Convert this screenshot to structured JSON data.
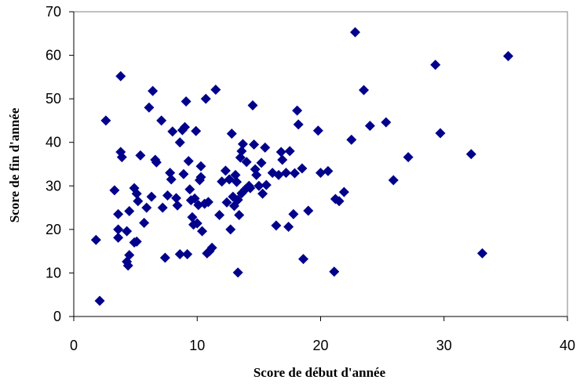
{
  "chart_data": {
    "type": "scatter",
    "title": "",
    "xlabel": "Score de début d'année",
    "ylabel": "Score de fin d'année",
    "xlim": [
      0,
      40
    ],
    "ylim": [
      0,
      70
    ],
    "x_ticks": [
      0,
      10,
      20,
      30,
      40
    ],
    "y_ticks": [
      0,
      10,
      20,
      30,
      40,
      50,
      60,
      70
    ],
    "grid": false,
    "legend": "none",
    "marker": "diamond",
    "colors": {
      "marker": "#00008B",
      "frame": "#808080",
      "axis": "#000000"
    },
    "series": [
      {
        "points": [
          [
            1.8,
            17.6
          ],
          [
            2.1,
            3.6
          ],
          [
            2.6,
            45.0
          ],
          [
            3.3,
            29.0
          ],
          [
            3.6,
            23.5
          ],
          [
            3.6,
            20.0
          ],
          [
            3.6,
            18.1
          ],
          [
            3.8,
            55.2
          ],
          [
            3.8,
            37.8
          ],
          [
            3.9,
            36.6
          ],
          [
            4.3,
            19.6
          ],
          [
            4.3,
            12.6
          ],
          [
            4.4,
            11.7
          ],
          [
            4.5,
            24.2
          ],
          [
            4.5,
            14.1
          ],
          [
            4.9,
            29.5
          ],
          [
            4.9,
            17.0
          ],
          [
            5.1,
            28.2
          ],
          [
            5.1,
            17.2
          ],
          [
            5.2,
            26.5
          ],
          [
            5.4,
            37.0
          ],
          [
            5.7,
            21.5
          ],
          [
            5.9,
            25.0
          ],
          [
            6.1,
            48.0
          ],
          [
            6.3,
            27.5
          ],
          [
            6.4,
            51.8
          ],
          [
            6.6,
            36.0
          ],
          [
            6.7,
            35.4
          ],
          [
            7.1,
            45.0
          ],
          [
            7.2,
            25.0
          ],
          [
            7.4,
            13.5
          ],
          [
            7.6,
            27.8
          ],
          [
            7.8,
            33.0
          ],
          [
            7.9,
            31.5
          ],
          [
            8.0,
            42.5
          ],
          [
            8.3,
            27.2
          ],
          [
            8.4,
            25.5
          ],
          [
            8.6,
            40.0
          ],
          [
            8.6,
            14.3
          ],
          [
            8.8,
            42.8
          ],
          [
            8.9,
            32.7
          ],
          [
            9.0,
            43.5
          ],
          [
            9.1,
            49.4
          ],
          [
            9.2,
            14.3
          ],
          [
            9.3,
            35.7
          ],
          [
            9.4,
            29.2
          ],
          [
            9.5,
            26.7
          ],
          [
            9.6,
            22.8
          ],
          [
            9.7,
            21.1
          ],
          [
            9.8,
            27.1
          ],
          [
            9.9,
            42.6
          ],
          [
            10.0,
            21.4
          ],
          [
            10.1,
            25.6
          ],
          [
            10.2,
            31.3
          ],
          [
            10.3,
            34.5
          ],
          [
            10.3,
            32.0
          ],
          [
            10.4,
            19.6
          ],
          [
            10.6,
            25.9
          ],
          [
            10.7,
            50.0
          ],
          [
            10.8,
            14.5
          ],
          [
            10.9,
            26.3
          ],
          [
            11.0,
            15.0
          ],
          [
            11.2,
            15.8
          ],
          [
            11.5,
            52.1
          ],
          [
            11.8,
            23.3
          ],
          [
            12.0,
            31.0
          ],
          [
            12.3,
            33.5
          ],
          [
            12.4,
            26.2
          ],
          [
            12.6,
            31.5
          ],
          [
            12.7,
            20.0
          ],
          [
            12.8,
            42.0
          ],
          [
            12.9,
            27.5
          ],
          [
            13.0,
            25.4
          ],
          [
            13.1,
            32.5
          ],
          [
            13.2,
            30.9
          ],
          [
            13.3,
            10.1
          ],
          [
            13.3,
            26.8
          ],
          [
            13.4,
            23.3
          ],
          [
            13.5,
            36.5
          ],
          [
            13.6,
            38.0
          ],
          [
            13.6,
            28.3
          ],
          [
            13.7,
            39.6
          ],
          [
            13.9,
            29.2
          ],
          [
            14.0,
            35.5
          ],
          [
            14.2,
            30.0
          ],
          [
            14.3,
            29.5
          ],
          [
            14.5,
            48.5
          ],
          [
            14.6,
            39.5
          ],
          [
            14.7,
            33.8
          ],
          [
            14.8,
            32.5
          ],
          [
            15.0,
            30.0
          ],
          [
            15.2,
            35.3
          ],
          [
            15.3,
            28.2
          ],
          [
            15.5,
            38.8
          ],
          [
            15.6,
            30.2
          ],
          [
            16.1,
            33.0
          ],
          [
            16.4,
            20.9
          ],
          [
            16.6,
            32.5
          ],
          [
            16.8,
            37.8
          ],
          [
            16.9,
            36.0
          ],
          [
            17.2,
            33.0
          ],
          [
            17.4,
            20.6
          ],
          [
            17.5,
            38.0
          ],
          [
            17.8,
            23.5
          ],
          [
            17.9,
            32.9
          ],
          [
            18.1,
            47.3
          ],
          [
            18.2,
            44.1
          ],
          [
            18.5,
            34.0
          ],
          [
            18.6,
            13.2
          ],
          [
            19.0,
            24.3
          ],
          [
            19.8,
            42.7
          ],
          [
            20.0,
            33.0
          ],
          [
            20.6,
            33.4
          ],
          [
            21.1,
            10.3
          ],
          [
            21.2,
            27.0
          ],
          [
            21.5,
            26.5
          ],
          [
            21.9,
            28.6
          ],
          [
            22.5,
            40.6
          ],
          [
            22.8,
            65.3
          ],
          [
            23.5,
            52.0
          ],
          [
            24.0,
            43.8
          ],
          [
            25.3,
            44.6
          ],
          [
            25.9,
            31.3
          ],
          [
            27.1,
            36.6
          ],
          [
            29.3,
            57.8
          ],
          [
            29.7,
            42.1
          ],
          [
            32.2,
            37.3
          ],
          [
            33.1,
            14.5
          ],
          [
            35.2,
            59.8
          ]
        ]
      }
    ]
  }
}
